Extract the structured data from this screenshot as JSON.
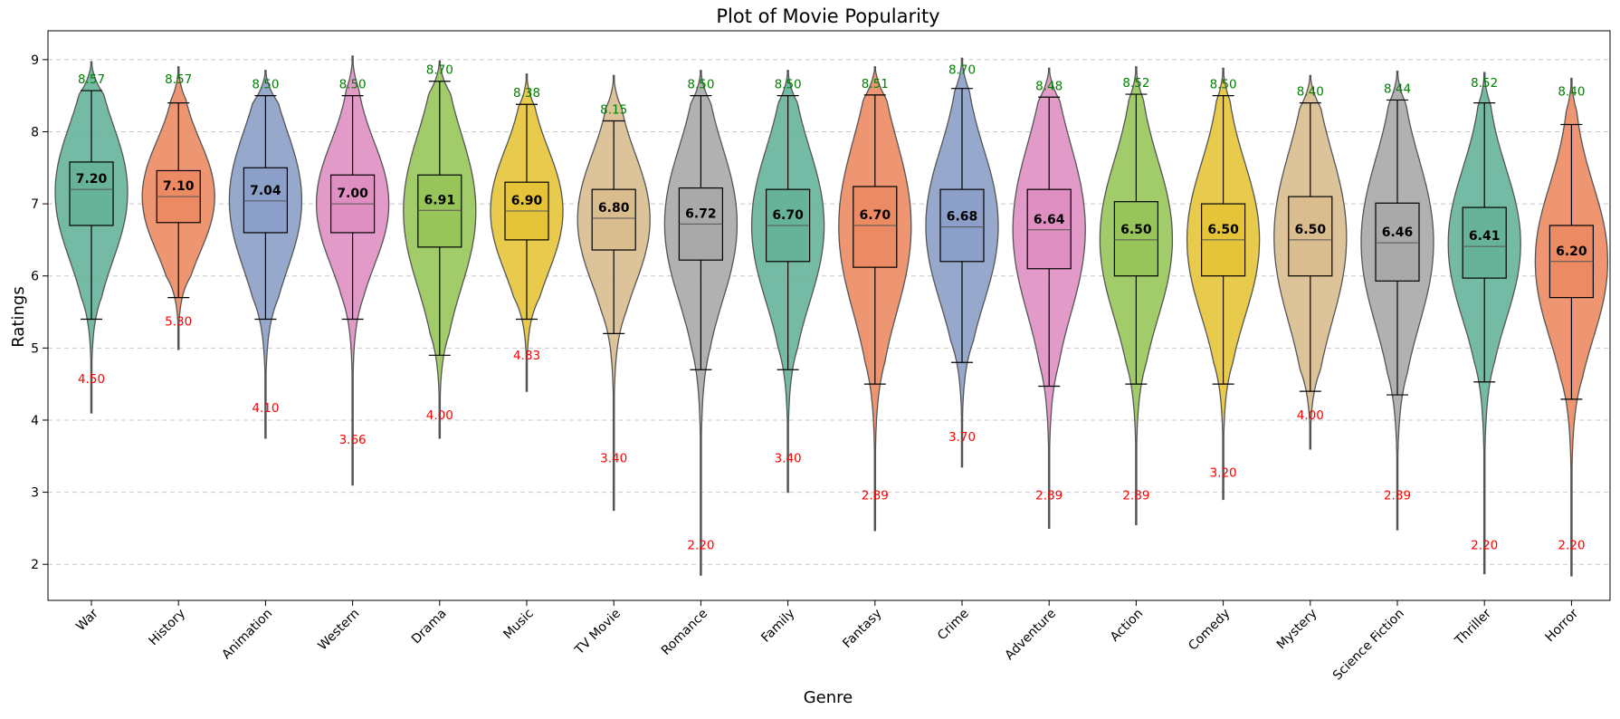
{
  "chart_data": {
    "type": "violin",
    "title": "Plot of Movie Popularity",
    "xlabel": "Genre",
    "ylabel": "Ratings",
    "ylim": [
      1.5,
      9.4
    ],
    "yticks": [
      2,
      3,
      4,
      5,
      6,
      7,
      8,
      9
    ],
    "grid": "horizontal dashed",
    "colors": {
      "palette": [
        "#66b39a",
        "#ec8a63",
        "#8c9fc8",
        "#df8fc2",
        "#98c55a",
        "#e6c43a",
        "#d9bd8f",
        "#a9a9a9"
      ],
      "max_label": "#008000",
      "min_label": "#ff0000"
    },
    "genres": [
      {
        "name": "War",
        "median": 7.2,
        "median_label": "7.20",
        "q1": 6.7,
        "q3": 7.58,
        "whisker_low": 5.4,
        "whisker_high": 8.57,
        "min": 4.5,
        "min_label": "4.50",
        "max": 8.57,
        "max_label": "8.57",
        "violin_low": 4.1,
        "violin_high": 8.97
      },
      {
        "name": "History",
        "median": 7.1,
        "median_label": "7.10",
        "q1": 6.74,
        "q3": 7.46,
        "whisker_low": 5.7,
        "whisker_high": 8.4,
        "min": 5.3,
        "min_label": "5.30",
        "max": 8.57,
        "max_label": "8.57",
        "violin_low": 4.98,
        "violin_high": 8.9
      },
      {
        "name": "Animation",
        "median": 7.04,
        "median_label": "7.04",
        "q1": 6.6,
        "q3": 7.5,
        "whisker_low": 5.4,
        "whisker_high": 8.5,
        "min": 4.1,
        "min_label": "4.10",
        "max": 8.5,
        "max_label": "8.50",
        "violin_low": 3.75,
        "violin_high": 8.85
      },
      {
        "name": "Western",
        "median": 7.0,
        "median_label": "7.00",
        "q1": 6.6,
        "q3": 7.4,
        "whisker_low": 5.4,
        "whisker_high": 8.5,
        "min": 3.66,
        "min_label": "3.66",
        "max": 8.5,
        "max_label": "8.50",
        "violin_low": 3.1,
        "violin_high": 9.05
      },
      {
        "name": "Drama",
        "median": 6.91,
        "median_label": "6.91",
        "q1": 6.4,
        "q3": 7.4,
        "whisker_low": 4.9,
        "whisker_high": 8.7,
        "min": 4.0,
        "min_label": "4.00",
        "max": 8.7,
        "max_label": "8.70",
        "violin_low": 3.75,
        "violin_high": 8.98
      },
      {
        "name": "Music",
        "median": 6.9,
        "median_label": "6.90",
        "q1": 6.5,
        "q3": 7.3,
        "whisker_low": 5.4,
        "whisker_high": 8.38,
        "min": 4.83,
        "min_label": "4.83",
        "max": 8.38,
        "max_label": "8.38",
        "violin_low": 4.4,
        "violin_high": 8.8
      },
      {
        "name": "TV Movie",
        "median": 6.8,
        "median_label": "6.80",
        "q1": 6.36,
        "q3": 7.2,
        "whisker_low": 5.2,
        "whisker_high": 8.15,
        "min": 3.4,
        "min_label": "3.40",
        "max": 8.15,
        "max_label": "8.15",
        "violin_low": 2.75,
        "violin_high": 8.78
      },
      {
        "name": "Romance",
        "median": 6.72,
        "median_label": "6.72",
        "q1": 6.22,
        "q3": 7.22,
        "whisker_low": 4.7,
        "whisker_high": 8.5,
        "min": 2.2,
        "min_label": "2.20",
        "max": 8.5,
        "max_label": "8.50",
        "violin_low": 1.85,
        "violin_high": 8.85
      },
      {
        "name": "Family",
        "median": 6.7,
        "median_label": "6.70",
        "q1": 6.2,
        "q3": 7.2,
        "whisker_low": 4.7,
        "whisker_high": 8.5,
        "min": 3.4,
        "min_label": "3.40",
        "max": 8.5,
        "max_label": "8.50",
        "violin_low": 3.0,
        "violin_high": 8.85
      },
      {
        "name": "Fantasy",
        "median": 6.7,
        "median_label": "6.70",
        "q1": 6.12,
        "q3": 7.24,
        "whisker_low": 4.5,
        "whisker_high": 8.51,
        "min": 2.89,
        "min_label": "2.89",
        "max": 8.51,
        "max_label": "8.51",
        "violin_low": 2.47,
        "violin_high": 8.9
      },
      {
        "name": "Crime",
        "median": 6.68,
        "median_label": "6.68",
        "q1": 6.2,
        "q3": 7.2,
        "whisker_low": 4.8,
        "whisker_high": 8.6,
        "min": 3.7,
        "min_label": "3.70",
        "max": 8.7,
        "max_label": "8.70",
        "violin_low": 3.35,
        "violin_high": 9.02
      },
      {
        "name": "Adventure",
        "median": 6.64,
        "median_label": "6.64",
        "q1": 6.1,
        "q3": 7.2,
        "whisker_low": 4.47,
        "whisker_high": 8.48,
        "min": 2.89,
        "min_label": "2.89",
        "max": 8.48,
        "max_label": "8.48",
        "violin_low": 2.5,
        "violin_high": 8.88
      },
      {
        "name": "Action",
        "median": 6.5,
        "median_label": "6.50",
        "q1": 6.0,
        "q3": 7.03,
        "whisker_low": 4.5,
        "whisker_high": 8.52,
        "min": 2.89,
        "min_label": "2.89",
        "max": 8.52,
        "max_label": "8.52",
        "violin_low": 2.55,
        "violin_high": 8.9
      },
      {
        "name": "Comedy",
        "median": 6.5,
        "median_label": "6.50",
        "q1": 6.0,
        "q3": 7.0,
        "whisker_low": 4.5,
        "whisker_high": 8.5,
        "min": 3.2,
        "min_label": "3.20",
        "max": 8.5,
        "max_label": "8.50",
        "violin_low": 2.9,
        "violin_high": 8.88
      },
      {
        "name": "Mystery",
        "median": 6.5,
        "median_label": "6.50",
        "q1": 6.0,
        "q3": 7.1,
        "whisker_low": 4.4,
        "whisker_high": 8.4,
        "min": 4.0,
        "min_label": "4.00",
        "max": 8.4,
        "max_label": "8.40",
        "violin_low": 3.6,
        "violin_high": 8.78
      },
      {
        "name": "Science Fiction",
        "median": 6.46,
        "median_label": "6.46",
        "q1": 5.93,
        "q3": 7.01,
        "whisker_low": 4.35,
        "whisker_high": 8.44,
        "min": 2.89,
        "min_label": "2.89",
        "max": 8.44,
        "max_label": "8.44",
        "violin_low": 2.48,
        "violin_high": 8.84
      },
      {
        "name": "Thriller",
        "median": 6.41,
        "median_label": "6.41",
        "q1": 5.97,
        "q3": 6.95,
        "whisker_low": 4.53,
        "whisker_high": 8.4,
        "min": 2.2,
        "min_label": "2.20",
        "max": 8.52,
        "max_label": "8.52",
        "violin_low": 1.87,
        "violin_high": 8.82
      },
      {
        "name": "Horror",
        "median": 6.2,
        "median_label": "6.20",
        "q1": 5.7,
        "q3": 6.7,
        "whisker_low": 4.29,
        "whisker_high": 8.1,
        "min": 2.2,
        "min_label": "2.20",
        "max": 8.4,
        "max_label": "8.40",
        "violin_low": 1.84,
        "violin_high": 8.74
      }
    ]
  }
}
